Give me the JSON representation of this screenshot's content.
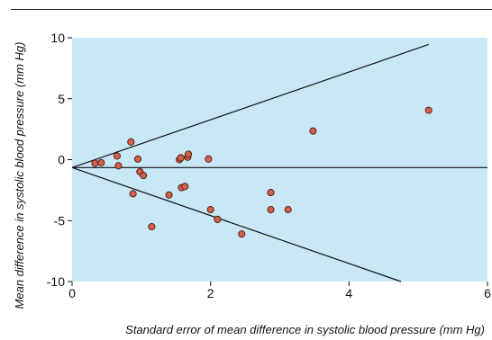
{
  "colors": {
    "plot_bg": "#c9e8f7",
    "point_fill": "#d1614a",
    "point_stroke": "#4a1a10",
    "line": "#111111"
  },
  "chart_data": {
    "type": "scatter",
    "title": "",
    "xlabel": "Standard error of mean difference in systolic blood pressure (mm Hg)",
    "ylabel": "Mean difference in systolic blood pressure (mm Hg)",
    "xlim": [
      0,
      6
    ],
    "ylim": [
      -10,
      10
    ],
    "xticks": [
      0,
      2,
      4,
      6
    ],
    "yticks": [
      -10,
      -5,
      0,
      5,
      10
    ],
    "ytick_labels": [
      "-10",
      "-5",
      "0",
      "5",
      "10"
    ],
    "grid": false,
    "points": [
      {
        "x": 0.33,
        "y": -0.3
      },
      {
        "x": 0.42,
        "y": -0.25
      },
      {
        "x": 0.65,
        "y": 0.3
      },
      {
        "x": 0.67,
        "y": -0.5
      },
      {
        "x": 0.85,
        "y": 1.45
      },
      {
        "x": 0.88,
        "y": -2.8
      },
      {
        "x": 0.95,
        "y": 0.05
      },
      {
        "x": 0.98,
        "y": -1.0
      },
      {
        "x": 1.03,
        "y": -1.3
      },
      {
        "x": 1.15,
        "y": -5.5
      },
      {
        "x": 1.4,
        "y": -2.9
      },
      {
        "x": 1.55,
        "y": 0.0
      },
      {
        "x": 1.57,
        "y": 0.15
      },
      {
        "x": 1.58,
        "y": -2.3
      },
      {
        "x": 1.63,
        "y": -2.2
      },
      {
        "x": 1.67,
        "y": 0.2
      },
      {
        "x": 1.68,
        "y": 0.45
      },
      {
        "x": 1.97,
        "y": 0.05
      },
      {
        "x": 2.0,
        "y": -4.1
      },
      {
        "x": 2.1,
        "y": -4.9
      },
      {
        "x": 2.45,
        "y": -6.1
      },
      {
        "x": 2.87,
        "y": -2.7
      },
      {
        "x": 2.87,
        "y": -4.1
      },
      {
        "x": 3.12,
        "y": -4.1
      },
      {
        "x": 3.48,
        "y": 2.35
      },
      {
        "x": 5.15,
        "y": 4.05
      }
    ],
    "lines": [
      {
        "name": "reference line",
        "x": [
          0,
          6
        ],
        "y": [
          -0.65,
          -0.65
        ]
      },
      {
        "name": "upper limit",
        "x": [
          0,
          5.15
        ],
        "y": [
          -0.65,
          9.45
        ]
      },
      {
        "name": "lower limit",
        "x": [
          0,
          4.75
        ],
        "y": [
          -0.65,
          -10
        ]
      }
    ]
  }
}
